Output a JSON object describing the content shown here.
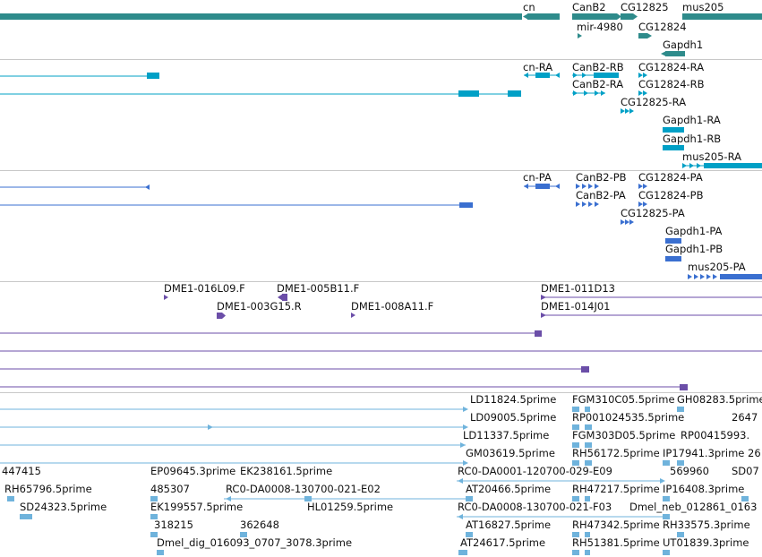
{
  "colors": {
    "gene": "#2e8b8b",
    "transcript": "#00a0c6",
    "protein": "#3a6fd0",
    "clone": "#6b4ea8",
    "est": "#6fb3dc",
    "separator": "#c8c8c8"
  },
  "tracks": {
    "genes": {
      "labels": [
        "cn",
        "CanB2",
        "CG12825",
        "mus205",
        "mir-4980",
        "CG12824",
        "Gapdh1"
      ]
    },
    "transcripts": {
      "labels": [
        "cn-RA",
        "CanB2-RB",
        "CG12824-RA",
        "CanB2-RA",
        "CG12824-RB",
        "CG12825-RA",
        "Gapdh1-RA",
        "Gapdh1-RB",
        "mus205-RA"
      ]
    },
    "proteins": {
      "labels": [
        "cn-PA",
        "CanB2-PB",
        "CG12824-PA",
        "CanB2-PA",
        "CG12824-PB",
        "CG12825-PA",
        "Gapdh1-PA",
        "Gapdh1-PB",
        "mus205-PA"
      ]
    },
    "clones": {
      "labels": [
        "DME1-016L09.F",
        "DME1-005B11.F",
        "DME1-011D13",
        "DME1-003G15.R",
        "DME1-008A11.F",
        "DME1-014J01"
      ]
    },
    "ests": {
      "labels": [
        "LD11824.5prime",
        "FGM310C05.5prime",
        "GH08283.5prime",
        "2647",
        "LD09005.5prime",
        "RP001024535.5prime",
        "LD11337.5prime",
        "FGM303D05.5prime",
        "RP00415993.",
        "GM03619.5prime",
        "RH56172.5prime",
        "IP17941.3prime",
        "26",
        "447415",
        "EP09645.3prime",
        "EK238161.5prime",
        "RC0-DA0001-120700-029-E09",
        "569960",
        "SD07",
        "RH65796.5prime",
        "485307",
        "RC0-DA0008-130700-021-E02",
        "AT20466.5prime",
        "RH47217.5prime",
        "IP16408.3prime",
        "SD24323.5prime",
        "EK199557.5prime",
        "HL01259.5prime",
        "RC0-DA0008-130700-021-F03",
        "Dmel_neb_012861_0163",
        "318215",
        "362648",
        "AT16827.5prime",
        "RH47342.5prime",
        "RH33575.3prime",
        "Dmel_dig_016093_0707_3078.3prime",
        "AT24617.5prime",
        "RH51381.5prime",
        "UT01839.3prime"
      ]
    }
  }
}
